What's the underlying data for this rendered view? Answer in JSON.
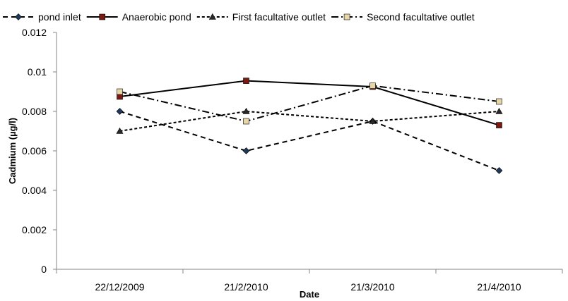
{
  "chart_data": {
    "type": "line",
    "categories": [
      "22/12/2009",
      "21/2/2010",
      "21/3/2010",
      "21/4/2010"
    ],
    "series": [
      {
        "name": "pond inlet",
        "values": [
          0.008,
          0.006,
          0.0075,
          0.005
        ],
        "color": "#000000",
        "dash": "dashed",
        "marker": "diamond",
        "marker_color": "#1f3a5a"
      },
      {
        "name": "Anaerobic pond",
        "values": [
          0.00875,
          0.00955,
          0.00925,
          0.0073
        ],
        "color": "#000000",
        "dash": "solid",
        "marker": "square",
        "marker_color": "#7a1a10"
      },
      {
        "name": "First facultative outlet",
        "values": [
          0.007,
          0.008,
          0.0075,
          0.008
        ],
        "color": "#000000",
        "dash": "dotted",
        "marker": "triangle",
        "marker_color": "#2a2a2a"
      },
      {
        "name": "Second  facultative outlet",
        "values": [
          0.009,
          0.0075,
          0.0093,
          0.0085
        ],
        "color": "#000000",
        "dash": "dashdot",
        "marker": "square",
        "marker_color": "#e8d6a8"
      }
    ],
    "title": "",
    "xlabel": "Date",
    "ylabel": "Cadmium (µg/l)",
    "ylim": [
      0,
      0.012
    ],
    "yticks": [
      "0",
      "0.002",
      "0.004",
      "0.006",
      "0.008",
      "0.01",
      "0.012"
    ],
    "grid": false,
    "legend": "top"
  }
}
